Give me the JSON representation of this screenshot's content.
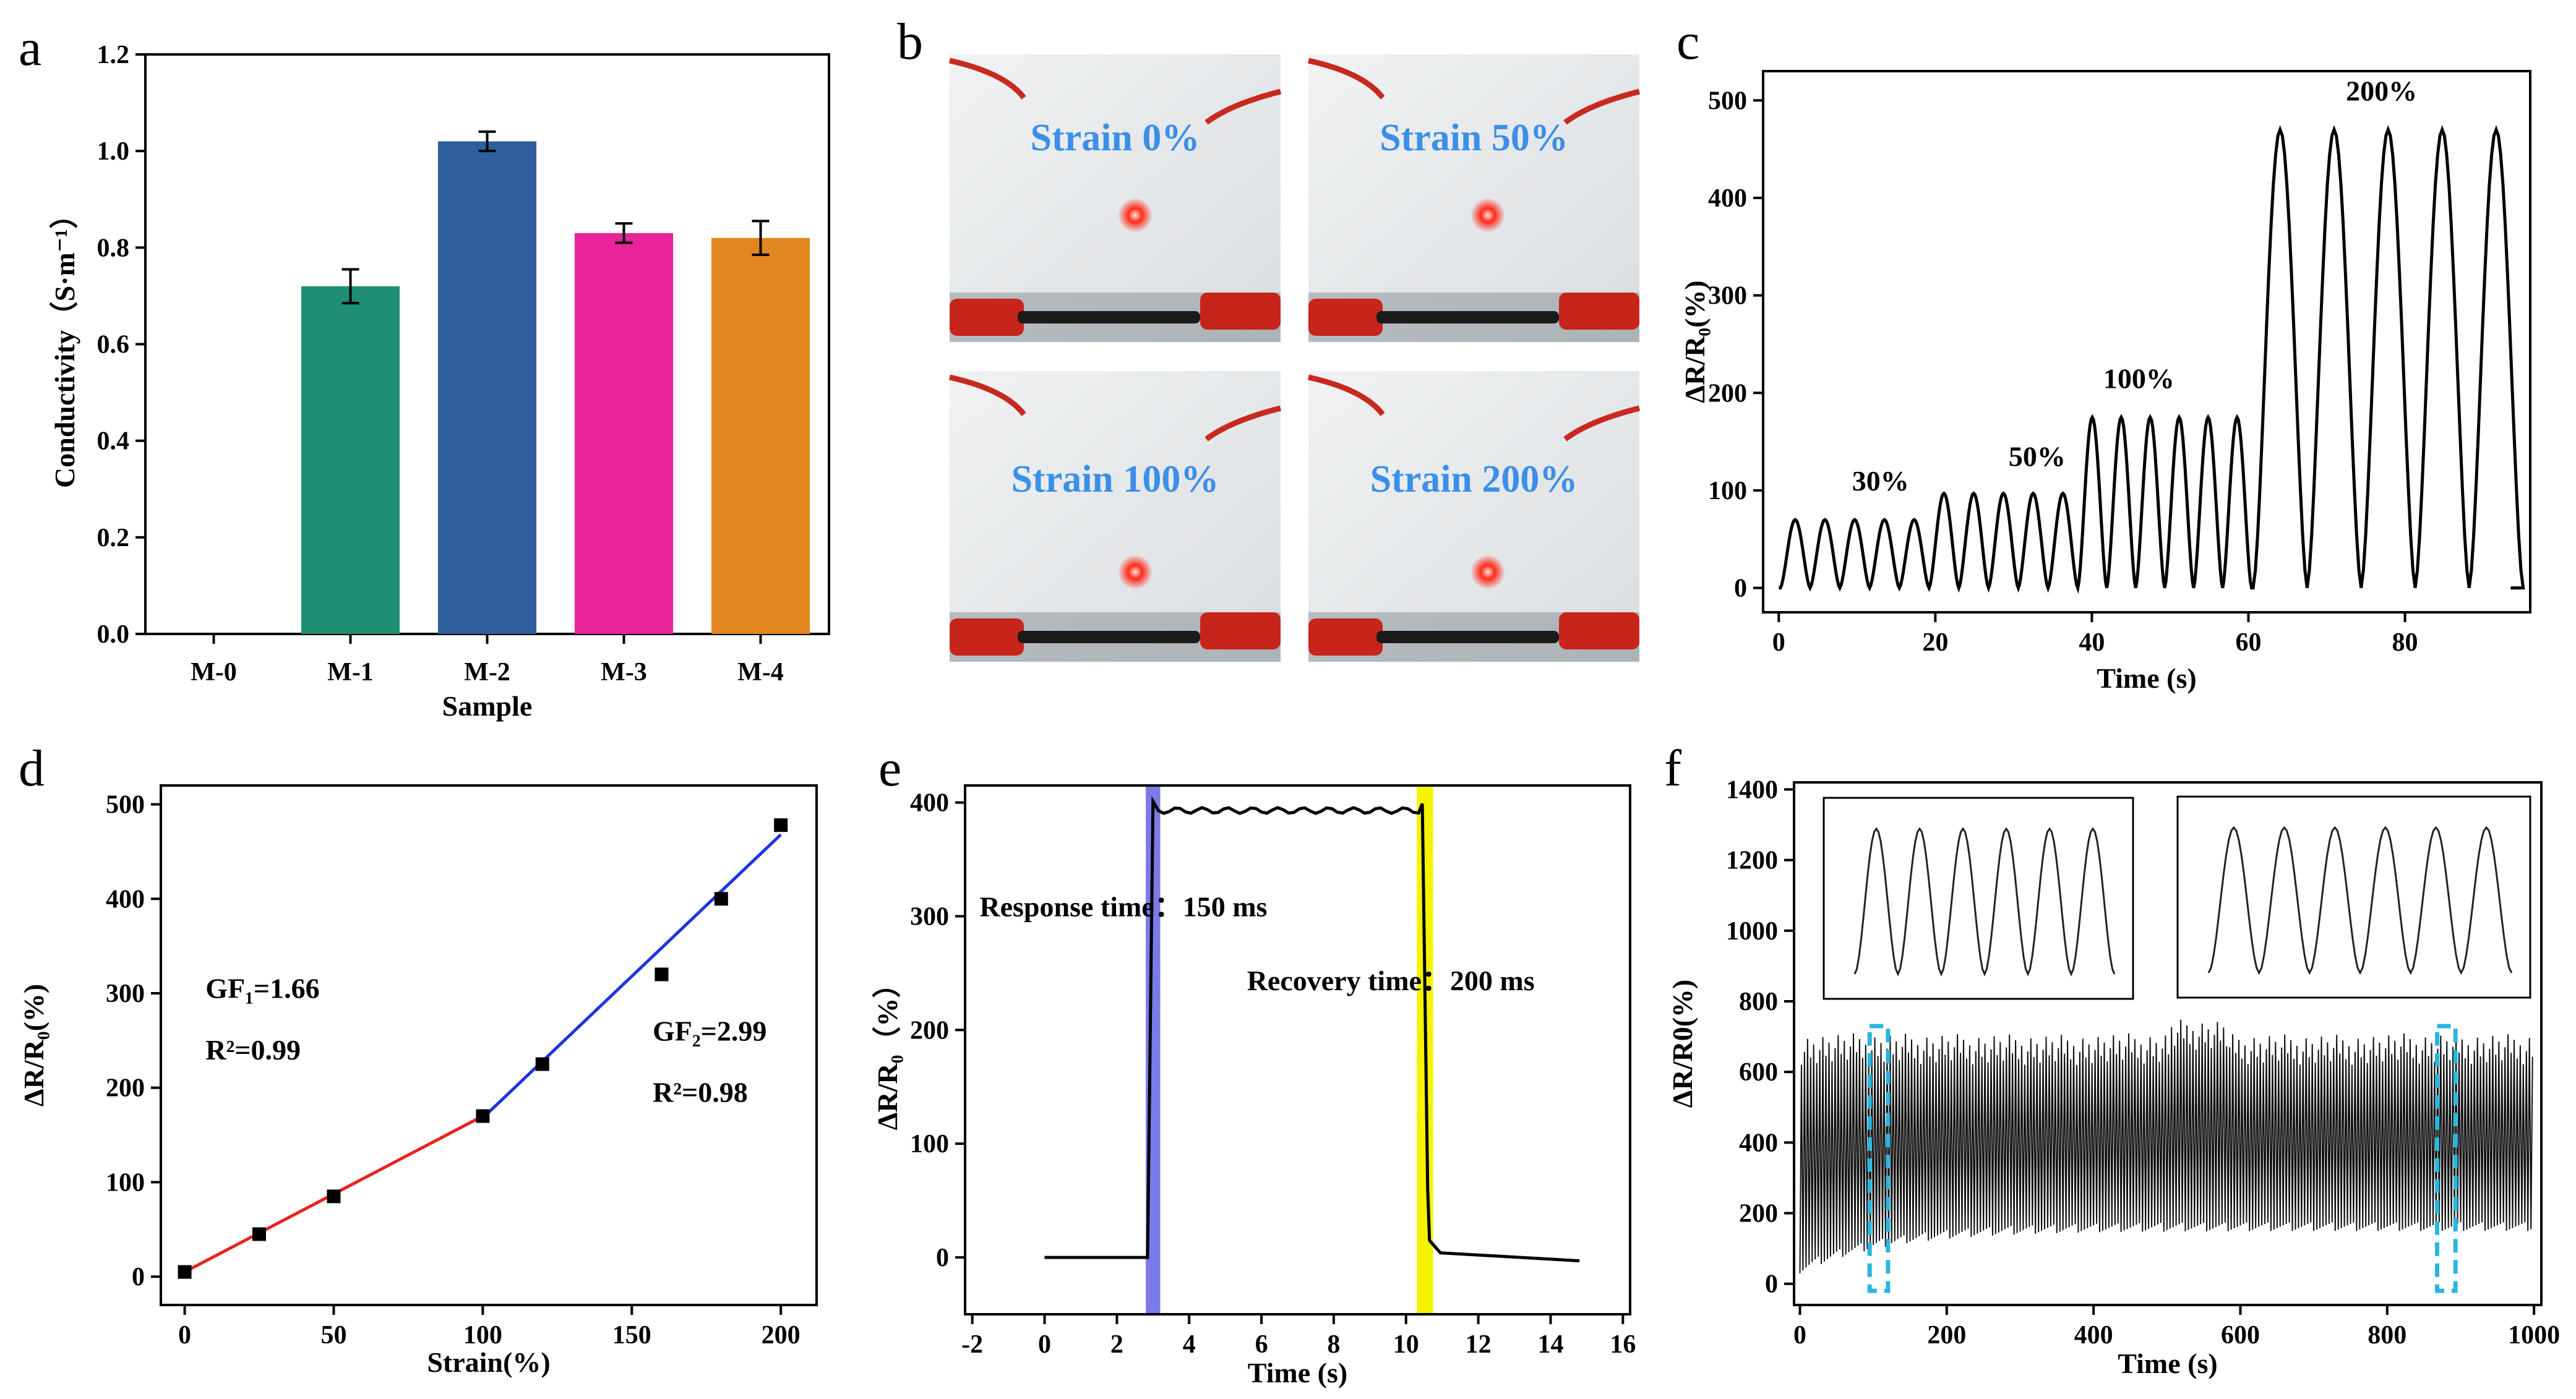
{
  "panel_labels": [
    "a",
    "b",
    "c",
    "d",
    "e",
    "f"
  ],
  "chart_data": [
    {
      "id": "a",
      "type": "bar",
      "categories": [
        "M-0",
        "M-1",
        "M-2",
        "M-3",
        "M-4"
      ],
      "values": [
        0,
        0.72,
        1.02,
        0.83,
        0.82
      ],
      "errors": [
        0,
        0.035,
        0.02,
        0.02,
        0.035
      ],
      "colors": [
        "#ffffff",
        "#1f8f74",
        "#2f5e9e",
        "#e8239b",
        "#e2871f"
      ],
      "xlabel": "Sample",
      "ylabel": "Conductivity（S·m⁻¹）",
      "ylim": [
        0,
        1.2
      ],
      "yticks": [
        "0.0",
        "0.2",
        "0.4",
        "0.6",
        "0.8",
        "1.0",
        "1.2"
      ]
    },
    {
      "id": "b",
      "type": "image-grid",
      "captions": [
        "Strain 0%",
        "Strain 50%",
        "Strain 100%",
        "Strain 200%"
      ],
      "led_color": "#ff2a1a"
    },
    {
      "id": "c",
      "type": "line",
      "xlabel": "Time (s)",
      "ylabel": "ΔR/R₀(%)",
      "xlim": [
        -2,
        96
      ],
      "ylim": [
        -25,
        530
      ],
      "xticks": [
        "0",
        "20",
        "40",
        "60",
        "80"
      ],
      "yticks": [
        "0",
        "100",
        "200",
        "300",
        "400",
        "500"
      ],
      "annotations": [
        {
          "text": "30%",
          "x": 13,
          "y": 100
        },
        {
          "text": "50%",
          "x": 33,
          "y": 125
        },
        {
          "text": "100%",
          "x": 46,
          "y": 205
        },
        {
          "text": "200%",
          "x": 77,
          "y": 500
        }
      ],
      "segments": [
        {
          "peak": 70,
          "count": 5,
          "start": 0.2,
          "period": 3.8
        },
        {
          "peak": 97,
          "count": 5,
          "start": 19.2,
          "period": 3.8
        },
        {
          "peak": 175,
          "count": 6,
          "start": 38.2,
          "period": 3.7
        },
        {
          "peak": 470,
          "count": 5,
          "start": 60.6,
          "period": 6.9
        }
      ]
    },
    {
      "id": "d",
      "type": "scatter-fit",
      "xlabel": "Strain(%)",
      "ylabel": "ΔR/R₀(%)",
      "xlim": [
        -8,
        212
      ],
      "ylim": [
        -30,
        520
      ],
      "xticks": [
        "0",
        "50",
        "100",
        "150",
        "200"
      ],
      "yticks": [
        "0",
        "100",
        "200",
        "300",
        "400",
        "500"
      ],
      "x": [
        0,
        25,
        50,
        100,
        120,
        160,
        180,
        200
      ],
      "y": [
        5,
        45,
        85,
        170,
        225,
        320,
        400,
        478
      ],
      "fits": [
        {
          "name": "GF1",
          "x": [
            0,
            100
          ],
          "y": [
            5,
            170
          ],
          "color": "#e8231c",
          "label": "GF₁=1.66",
          "r2": "R²=0.99"
        },
        {
          "name": "GF2",
          "x": [
            100,
            200
          ],
          "y": [
            168,
            468
          ],
          "color": "#1c35e0",
          "label": "GF₂=2.99",
          "r2": "R²=0.98"
        }
      ]
    },
    {
      "id": "e",
      "type": "line",
      "xlabel": "Time (s)",
      "ylabel": "ΔR/R₀（%）",
      "xlim": [
        -2.2,
        16.2
      ],
      "ylim": [
        -50,
        415
      ],
      "xticks": [
        "-2",
        "0",
        "2",
        "4",
        "6",
        "8",
        "10",
        "12",
        "14",
        "16"
      ],
      "yticks": [
        "0",
        "100",
        "200",
        "300",
        "400"
      ],
      "highlights": [
        {
          "x0": 2.8,
          "x1": 3.2,
          "color": "#7b7be8"
        },
        {
          "x0": 10.3,
          "x1": 10.75,
          "color": "#f4f400"
        }
      ],
      "response_label": "Response time：150 ms",
      "recovery_label": "Recovery time：200 ms",
      "baseline": 0,
      "plateau": 393,
      "rise_start": 2.85,
      "rise_end": 3.0,
      "fall_start": 10.45,
      "fall_end": 10.65,
      "end_x": 14.8
    },
    {
      "id": "f",
      "type": "line",
      "xlabel": "Time (s)",
      "ylabel": "ΔR/R0(%)",
      "xlim": [
        -8,
        1010
      ],
      "ylim": [
        -60,
        1420
      ],
      "xticks": [
        "0",
        "200",
        "400",
        "600",
        "800",
        "1000"
      ],
      "yticks": [
        "0",
        "200",
        "400",
        "600",
        "800",
        "1000",
        "1200",
        "1400"
      ],
      "cycles": 240,
      "highlight_boxes": [
        {
          "x0": 95,
          "x1": 120
        },
        {
          "x0": 868,
          "x1": 893
        }
      ],
      "box_color": "#29b6e0"
    }
  ]
}
